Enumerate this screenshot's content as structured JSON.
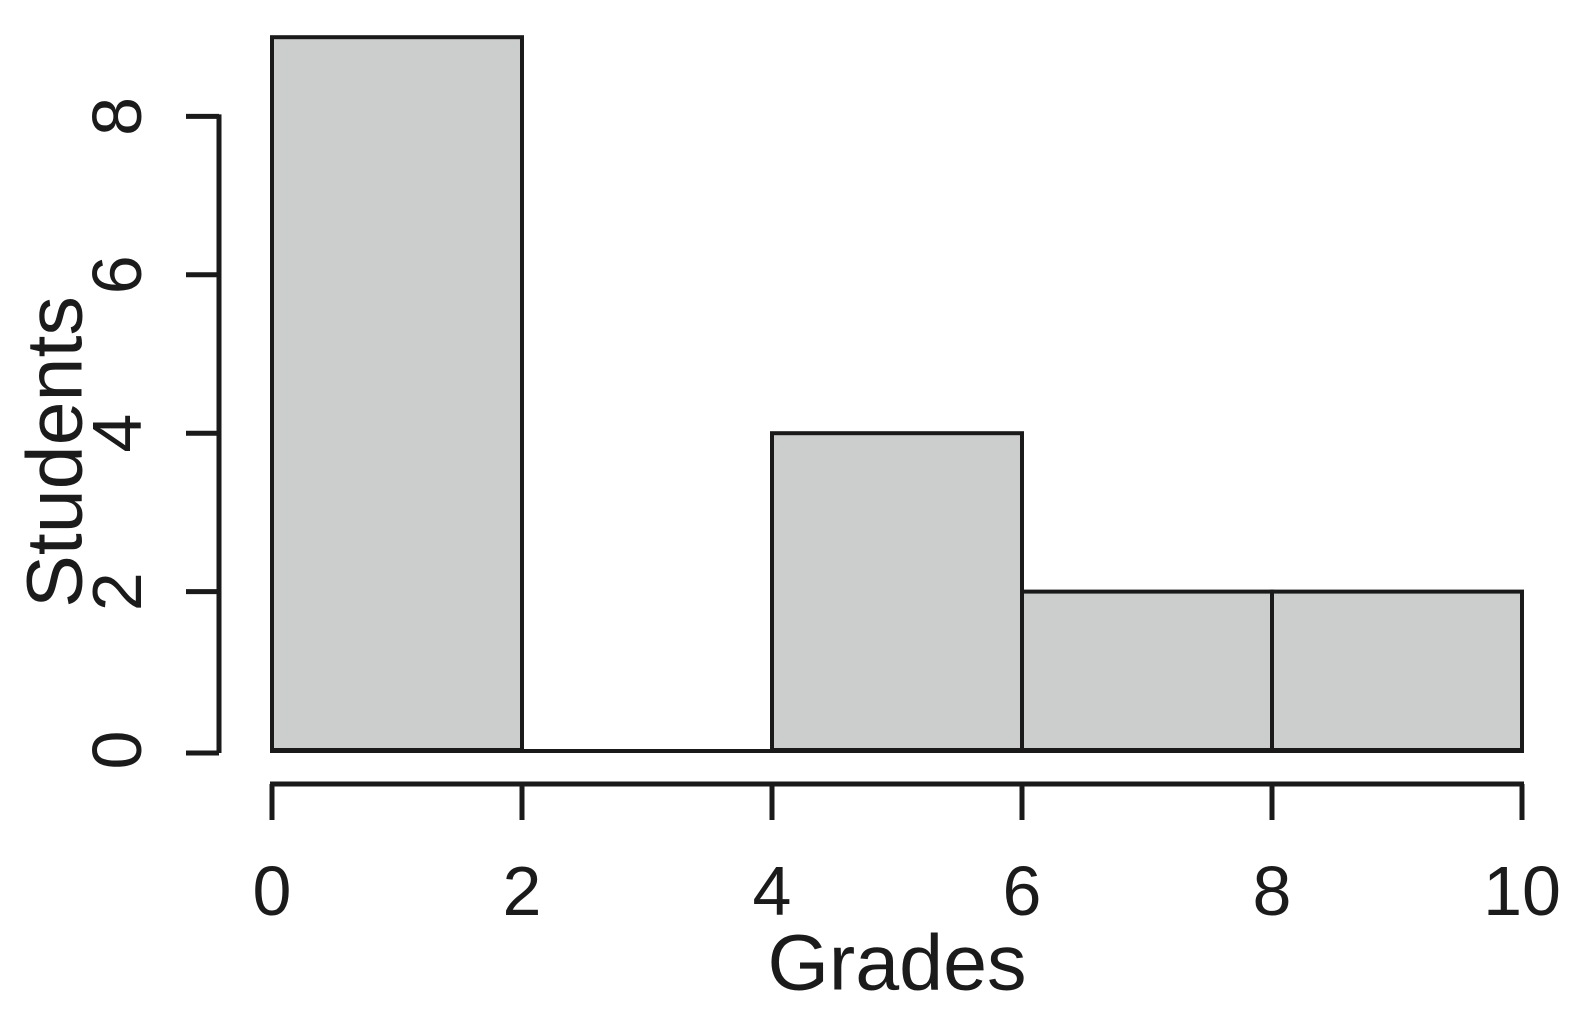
{
  "chart_data": {
    "type": "bar",
    "subtype": "histogram",
    "title": "",
    "xlabel": "Grades",
    "ylabel": "Students",
    "bin_edges": [
      0,
      2,
      4,
      6,
      8,
      10
    ],
    "counts": [
      9,
      0,
      4,
      2,
      2
    ],
    "x_ticks": [
      0,
      2,
      4,
      6,
      8,
      10
    ],
    "x_tick_labels": [
      "0",
      "2",
      "4",
      "6",
      "8",
      "10"
    ],
    "y_ticks": [
      0,
      2,
      4,
      6,
      8
    ],
    "y_tick_labels": [
      "0",
      "2",
      "4",
      "6",
      "8"
    ],
    "xlim": [
      0,
      10
    ],
    "ylim": [
      0,
      9
    ],
    "y_axis_tick_max": 8,
    "grid": false,
    "legend": null,
    "colors": {
      "bar_fill": "#cbcecd",
      "bar_stroke": "#1a1a1a",
      "axis": "#1a1a1a",
      "text": "#1b1b1b",
      "background": "#ffffff"
    }
  }
}
